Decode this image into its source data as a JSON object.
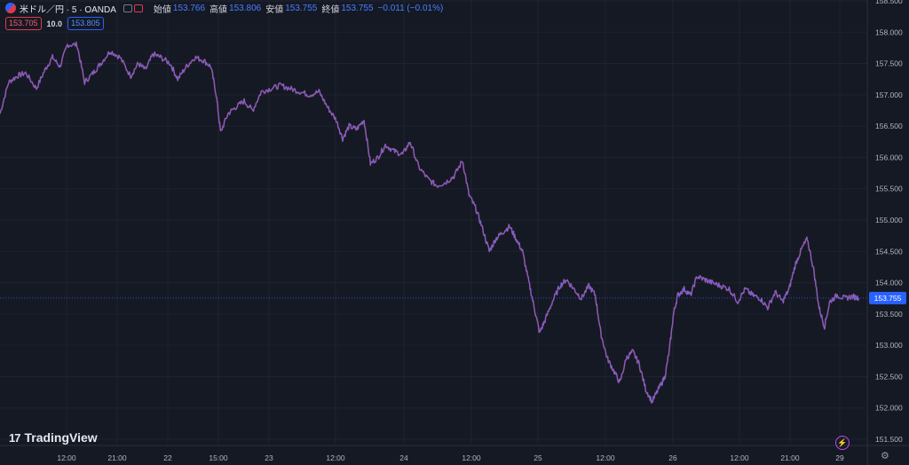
{
  "header": {
    "symbol": "米ドル／円 · 5 · OANDA",
    "open_label": "始値",
    "open_value": "153.766",
    "high_label": "高値",
    "high_value": "153.806",
    "low_label": "安値",
    "low_value": "153.755",
    "close_label": "終値",
    "close_value": "153.755",
    "change": "−0.011 (−0.01%)"
  },
  "quotes": {
    "sell": "153.705",
    "spread": "10.0",
    "buy": "153.805"
  },
  "brand": "TradingView",
  "colors": {
    "background": "#151924",
    "up": "#5b6cf0",
    "down": "#e8435a",
    "price_tag": "#2962ff"
  },
  "chart_data": {
    "type": "line",
    "ylim": [
      151.5,
      158.5
    ],
    "y_ticks": [
      "151.500",
      "152.000",
      "152.500",
      "153.000",
      "153.500",
      "154.000",
      "154.500",
      "155.000",
      "155.500",
      "156.000",
      "156.500",
      "157.000",
      "157.500",
      "158.000",
      "158.500"
    ],
    "x_ticks": [
      "12:00",
      "21:00",
      "22",
      "15:00",
      "23",
      "12:00",
      "24",
      "12:00",
      "25",
      "12:00",
      "26",
      "12:00",
      "21:00",
      "29"
    ],
    "last_price": "153.755",
    "series": [
      {
        "points": [
          [
            0,
            156.7
          ],
          [
            0.8,
            157.2
          ],
          [
            1.6,
            157.3
          ],
          [
            2.4,
            157.35
          ],
          [
            3.4,
            157.1
          ],
          [
            4.2,
            157.4
          ],
          [
            4.9,
            157.6
          ],
          [
            5.6,
            157.45
          ],
          [
            6.3,
            157.8
          ],
          [
            7.2,
            157.8
          ],
          [
            7.9,
            157.2
          ],
          [
            8.7,
            157.35
          ],
          [
            9.4,
            157.5
          ],
          [
            10.3,
            157.7
          ],
          [
            11.2,
            157.6
          ],
          [
            12.2,
            157.3
          ],
          [
            12.9,
            157.5
          ],
          [
            13.6,
            157.4
          ],
          [
            14.3,
            157.65
          ],
          [
            15.0,
            157.6
          ],
          [
            15.9,
            157.5
          ],
          [
            16.6,
            157.25
          ],
          [
            17.4,
            157.45
          ],
          [
            18.2,
            157.6
          ],
          [
            19.0,
            157.55
          ],
          [
            19.7,
            157.45
          ],
          [
            20.2,
            157.0
          ],
          [
            20.6,
            156.4
          ],
          [
            21.3,
            156.7
          ],
          [
            22.0,
            156.8
          ],
          [
            22.8,
            156.9
          ],
          [
            23.6,
            156.75
          ],
          [
            24.4,
            157.05
          ],
          [
            25.3,
            157.1
          ],
          [
            26.2,
            157.15
          ],
          [
            27.1,
            157.1
          ],
          [
            28.0,
            157.05
          ],
          [
            28.9,
            157.0
          ],
          [
            29.8,
            157.05
          ],
          [
            30.6,
            156.8
          ],
          [
            31.4,
            156.6
          ],
          [
            32.0,
            156.3
          ],
          [
            32.6,
            156.5
          ],
          [
            33.3,
            156.45
          ],
          [
            34.0,
            156.6
          ],
          [
            34.6,
            155.9
          ],
          [
            35.3,
            156.0
          ],
          [
            36.0,
            156.2
          ],
          [
            36.8,
            156.1
          ],
          [
            37.6,
            156.05
          ],
          [
            38.3,
            156.25
          ],
          [
            39.1,
            155.85
          ],
          [
            40.0,
            155.65
          ],
          [
            40.8,
            155.55
          ],
          [
            41.6,
            155.6
          ],
          [
            42.4,
            155.7
          ],
          [
            43.2,
            155.95
          ],
          [
            43.8,
            155.4
          ],
          [
            44.4,
            155.2
          ],
          [
            45.0,
            154.9
          ],
          [
            45.7,
            154.5
          ],
          [
            46.3,
            154.7
          ],
          [
            46.9,
            154.8
          ],
          [
            47.6,
            154.9
          ],
          [
            48.2,
            154.7
          ],
          [
            48.8,
            154.5
          ],
          [
            49.4,
            154.0
          ],
          [
            49.9,
            153.6
          ],
          [
            50.4,
            153.2
          ],
          [
            50.9,
            153.4
          ],
          [
            51.6,
            153.7
          ],
          [
            52.3,
            153.95
          ],
          [
            52.9,
            154.05
          ],
          [
            53.6,
            153.9
          ],
          [
            54.3,
            153.75
          ],
          [
            55.0,
            153.95
          ],
          [
            55.6,
            153.8
          ],
          [
            56.1,
            153.2
          ],
          [
            56.7,
            152.8
          ],
          [
            57.3,
            152.6
          ],
          [
            57.9,
            152.4
          ],
          [
            58.5,
            152.8
          ],
          [
            59.1,
            152.9
          ],
          [
            59.7,
            152.7
          ],
          [
            60.3,
            152.3
          ],
          [
            60.9,
            152.1
          ],
          [
            61.5,
            152.3
          ],
          [
            62.1,
            152.5
          ],
          [
            62.5,
            152.9
          ],
          [
            62.9,
            153.5
          ],
          [
            63.3,
            153.8
          ],
          [
            63.9,
            153.9
          ],
          [
            64.5,
            153.8
          ],
          [
            65.1,
            154.1
          ],
          [
            65.8,
            154.05
          ],
          [
            66.5,
            154.0
          ],
          [
            67.3,
            153.95
          ],
          [
            68.1,
            153.9
          ],
          [
            68.9,
            153.7
          ],
          [
            69.6,
            153.9
          ],
          [
            70.3,
            153.8
          ],
          [
            71.0,
            153.75
          ],
          [
            71.7,
            153.6
          ],
          [
            72.4,
            153.85
          ],
          [
            73.1,
            153.7
          ],
          [
            73.7,
            153.9
          ],
          [
            74.3,
            154.3
          ],
          [
            74.9,
            154.55
          ],
          [
            75.4,
            154.7
          ],
          [
            76.0,
            154.2
          ],
          [
            76.5,
            153.6
          ],
          [
            77.0,
            153.3
          ],
          [
            77.5,
            153.7
          ],
          [
            78.2,
            153.8
          ],
          [
            78.9,
            153.75
          ],
          [
            79.6,
            153.78
          ],
          [
            80.2,
            153.755
          ]
        ]
      }
    ]
  }
}
